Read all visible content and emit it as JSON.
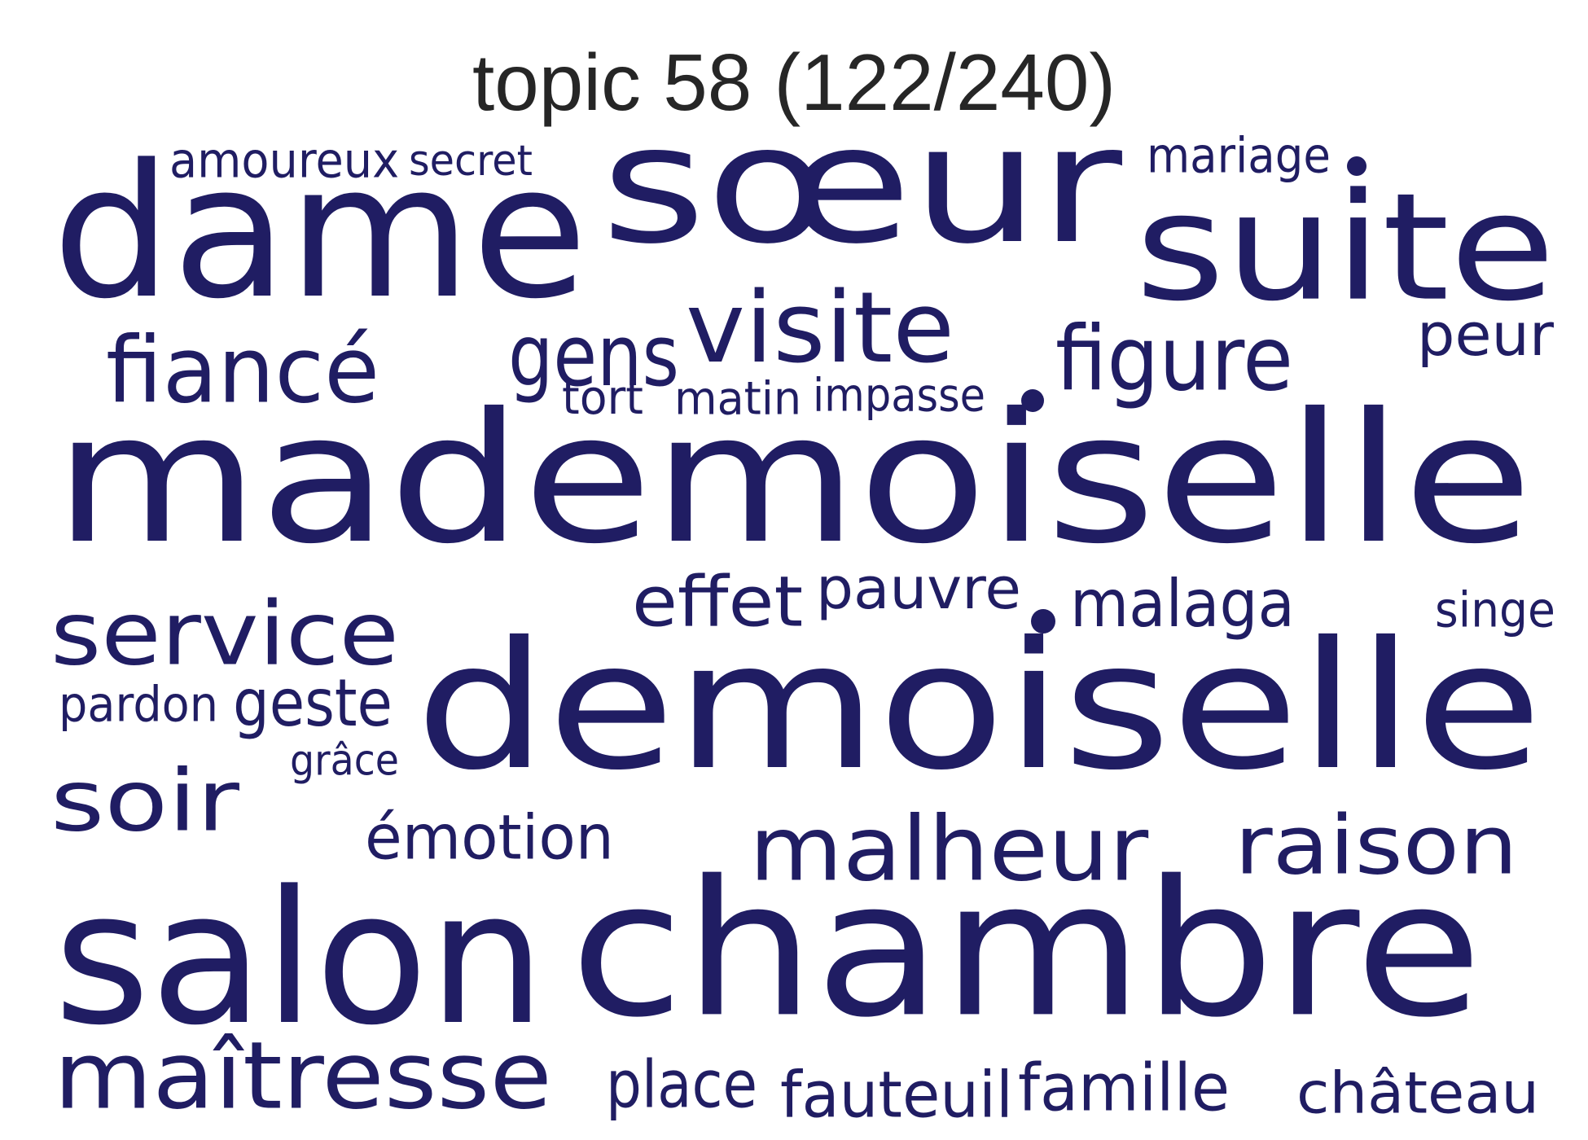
{
  "title": "topic 58 (122/240)",
  "word_color": "#201d63",
  "words": [
    {
      "text": "amoureux",
      "weight": 0.16
    },
    {
      "text": "secret",
      "weight": 0.15
    },
    {
      "text": "sœur",
      "weight": 0.85
    },
    {
      "text": "mariage",
      "weight": 0.16
    },
    {
      "text": "dame",
      "weight": 0.75
    },
    {
      "text": "suite",
      "weight": 0.7
    },
    {
      "text": "visite",
      "weight": 0.42
    },
    {
      "text": "gens",
      "weight": 0.3
    },
    {
      "text": "figure",
      "weight": 0.35
    },
    {
      "text": "peur",
      "weight": 0.18
    },
    {
      "text": "fiancé",
      "weight": 0.34
    },
    {
      "text": "tort",
      "weight": 0.16
    },
    {
      "text": "matin",
      "weight": 0.16
    },
    {
      "text": "impasse",
      "weight": 0.15
    },
    {
      "text": "mademoiselle",
      "weight": 1.0
    },
    {
      "text": "effet",
      "weight": 0.28
    },
    {
      "text": "pauvre",
      "weight": 0.24
    },
    {
      "text": "malaga",
      "weight": 0.24
    },
    {
      "text": "singe",
      "weight": 0.16
    },
    {
      "text": "service",
      "weight": 0.33
    },
    {
      "text": "demoiselle",
      "weight": 0.93
    },
    {
      "text": "pardon",
      "weight": 0.17
    },
    {
      "text": "geste",
      "weight": 0.23
    },
    {
      "text": "grâce",
      "weight": 0.14
    },
    {
      "text": "soir",
      "weight": 0.34
    },
    {
      "text": "émotion",
      "weight": 0.23
    },
    {
      "text": "malheur",
      "weight": 0.38
    },
    {
      "text": "raison",
      "weight": 0.38
    },
    {
      "text": "salon",
      "weight": 0.78
    },
    {
      "text": "chambre",
      "weight": 0.92
    },
    {
      "text": "maîtresse",
      "weight": 0.42
    },
    {
      "text": "place",
      "weight": 0.26
    },
    {
      "text": "fauteuil",
      "weight": 0.26
    },
    {
      "text": "famille",
      "weight": 0.27
    },
    {
      "text": "château",
      "weight": 0.23
    }
  ]
}
